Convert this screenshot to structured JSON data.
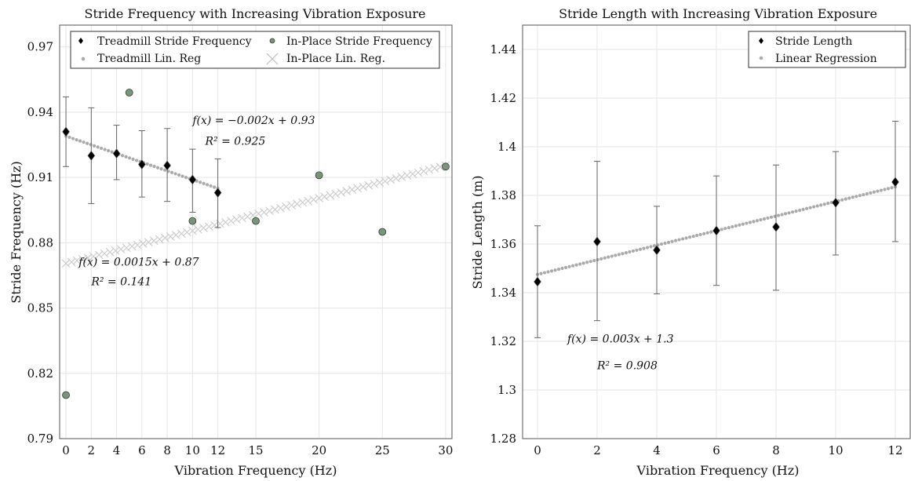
{
  "chart_data": [
    {
      "type": "scatter",
      "title": "Stride Frequency with Increasing Vibration Exposure",
      "xlabel": "Vibration Frequency (Hz)",
      "ylabel": "Stride Frequency (Hz)",
      "xlim": [
        -0.5,
        30.5
      ],
      "ylim": [
        0.79,
        0.98
      ],
      "xticks": [
        0,
        2,
        4,
        6,
        8,
        10,
        12,
        15,
        20,
        25,
        30
      ],
      "xtick_labels": [
        "0",
        "2",
        "4",
        "6",
        "8",
        "10",
        "12",
        "15",
        "20",
        "25",
        "30"
      ],
      "yticks": [
        0.79,
        0.82,
        0.85,
        0.88,
        0.91,
        0.94,
        0.97
      ],
      "ytick_labels": [
        "0.79",
        "0.82",
        "0.85",
        "0.88",
        "0.91",
        "0.94",
        "0.97"
      ],
      "grid": true,
      "legend_position": "top",
      "series": [
        {
          "name": "Treadmill Stride Frequency",
          "marker": "diamond",
          "color": "#000000",
          "x": [
            0,
            2,
            4,
            6,
            8,
            10,
            12
          ],
          "y": [
            0.931,
            0.92,
            0.921,
            0.916,
            0.9155,
            0.909,
            0.903
          ],
          "error_low": [
            0.915,
            0.898,
            0.909,
            0.901,
            0.899,
            0.894,
            0.887
          ],
          "error_high": [
            0.947,
            0.942,
            0.934,
            0.9315,
            0.9325,
            0.923,
            0.9185
          ]
        },
        {
          "name": "In-Place Stride Frequency",
          "marker": "circle",
          "color": "#7a947a",
          "x": [
            0,
            5,
            10,
            15,
            20,
            25,
            30
          ],
          "y": [
            0.81,
            0.949,
            0.89,
            0.89,
            0.911,
            0.885,
            0.915
          ]
        },
        {
          "name": "Treadmill Lin. Reg",
          "marker": "dot",
          "color": "#aaaaaa",
          "x_range": [
            0,
            12
          ],
          "slope": -0.002,
          "intercept": 0.929
        },
        {
          "name": "In-Place Lin. Reg.",
          "marker": "x",
          "color": "#c8c8c8",
          "x_range": [
            0,
            30
          ],
          "slope": 0.0015,
          "intercept": 0.8705
        }
      ],
      "annotations": [
        {
          "text": "f(x) = −0.002x + 0.93",
          "x": 10.0,
          "y": 0.9345
        },
        {
          "text": "R² = 0.925",
          "x": 11.0,
          "y": 0.925
        },
        {
          "text": "f(x) = 0.0015x + 0.87",
          "x": 1.0,
          "y": 0.8695
        },
        {
          "text": "R² = 0.141",
          "x": 2.0,
          "y": 0.8605
        }
      ]
    },
    {
      "type": "scatter",
      "title": "Stride Length with Increasing Vibration Exposure",
      "xlabel": "Vibration Frequency (Hz)",
      "ylabel": "Stride Length (m)",
      "xlim": [
        -0.5,
        12.5
      ],
      "ylim": [
        1.28,
        1.45
      ],
      "xticks": [
        0,
        2,
        4,
        6,
        8,
        10,
        12
      ],
      "xtick_labels": [
        "0",
        "2",
        "4",
        "6",
        "8",
        "10",
        "12"
      ],
      "yticks": [
        1.28,
        1.3,
        1.32,
        1.34,
        1.36,
        1.38,
        1.4,
        1.42,
        1.44
      ],
      "ytick_labels": [
        "1.28",
        "1.3",
        "1.32",
        "1.34",
        "1.36",
        "1.38",
        "1.4",
        "1.42",
        "1.44"
      ],
      "grid": true,
      "legend_position": "top-right",
      "series": [
        {
          "name": "Stride Length",
          "marker": "diamond",
          "color": "#000000",
          "x": [
            0,
            2,
            4,
            6,
            8,
            10,
            12
          ],
          "y": [
            1.3445,
            1.361,
            1.3575,
            1.3655,
            1.367,
            1.377,
            1.3855
          ],
          "error_low": [
            1.3215,
            1.3285,
            1.3395,
            1.343,
            1.341,
            1.3555,
            1.361
          ],
          "error_high": [
            1.3675,
            1.394,
            1.3755,
            1.388,
            1.3925,
            1.398,
            1.4105
          ]
        },
        {
          "name": "Linear Regression",
          "marker": "dot",
          "color": "#aaaaaa",
          "x_range": [
            0,
            12
          ],
          "slope": 0.003,
          "intercept": 1.3475
        }
      ],
      "annotations": [
        {
          "text": "f(x) = 0.003x + 1.3",
          "x": 1.0,
          "y": 1.3195
        },
        {
          "text": "R² = 0.908",
          "x": 2.0,
          "y": 1.3085
        }
      ]
    }
  ]
}
